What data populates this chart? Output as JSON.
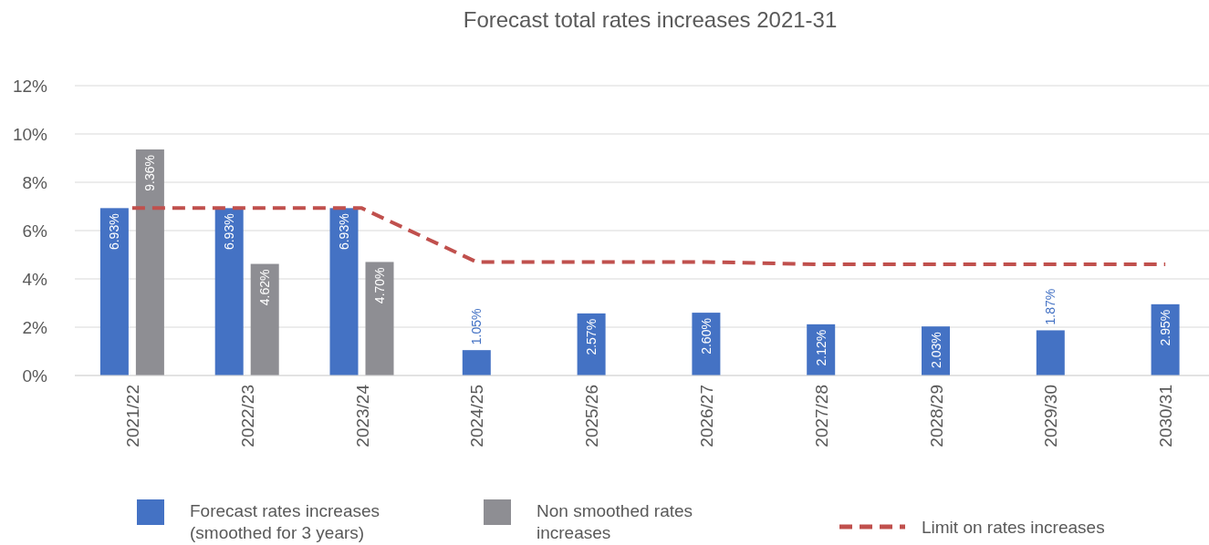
{
  "chart_data": {
    "type": "bar",
    "title": "Forecast total rates increases 2021-31",
    "categories": [
      "2021/22",
      "2022/23",
      "2023/24",
      "2024/25",
      "2025/26",
      "2026/27",
      "2027/28",
      "2028/29",
      "2029/30",
      "2030/31"
    ],
    "series": [
      {
        "name": "Forecast rates increases (smoothed for 3 years)",
        "color": "#4472c4",
        "values": [
          6.93,
          6.93,
          6.93,
          1.05,
          2.57,
          2.6,
          2.12,
          2.03,
          1.87,
          2.95
        ],
        "value_labels": [
          "6.93%",
          "6.93%",
          "6.93%",
          "1.05%",
          "2.57%",
          "2.60%",
          "2.12%",
          "2.03%",
          "1.87%",
          "2.95%"
        ]
      },
      {
        "name": "Non smoothed rates increases",
        "color": "#8e8e93",
        "values": [
          9.36,
          4.62,
          4.7,
          null,
          null,
          null,
          null,
          null,
          null,
          null
        ],
        "value_labels": [
          "9.36%",
          "4.62%",
          "4.70%",
          null,
          null,
          null,
          null,
          null,
          null,
          null
        ]
      },
      {
        "name": "Limit on rates increases",
        "type": "line",
        "color": "#c0504d",
        "line_style": "dashed",
        "marker": "none",
        "values": [
          6.93,
          6.93,
          6.93,
          4.7,
          4.7,
          4.7,
          4.6,
          4.6,
          4.6,
          4.6
        ]
      }
    ],
    "ylim": [
      0,
      12
    ],
    "yticks": [
      {
        "value": 0,
        "label": "0%"
      },
      {
        "value": 2,
        "label": "2%"
      },
      {
        "value": 4,
        "label": "4%"
      },
      {
        "value": 6,
        "label": "6%"
      },
      {
        "value": 8,
        "label": "8%"
      },
      {
        "value": 10,
        "label": "10%"
      },
      {
        "value": 12,
        "label": "12%"
      }
    ],
    "grid": "y",
    "legend": "bottom"
  }
}
